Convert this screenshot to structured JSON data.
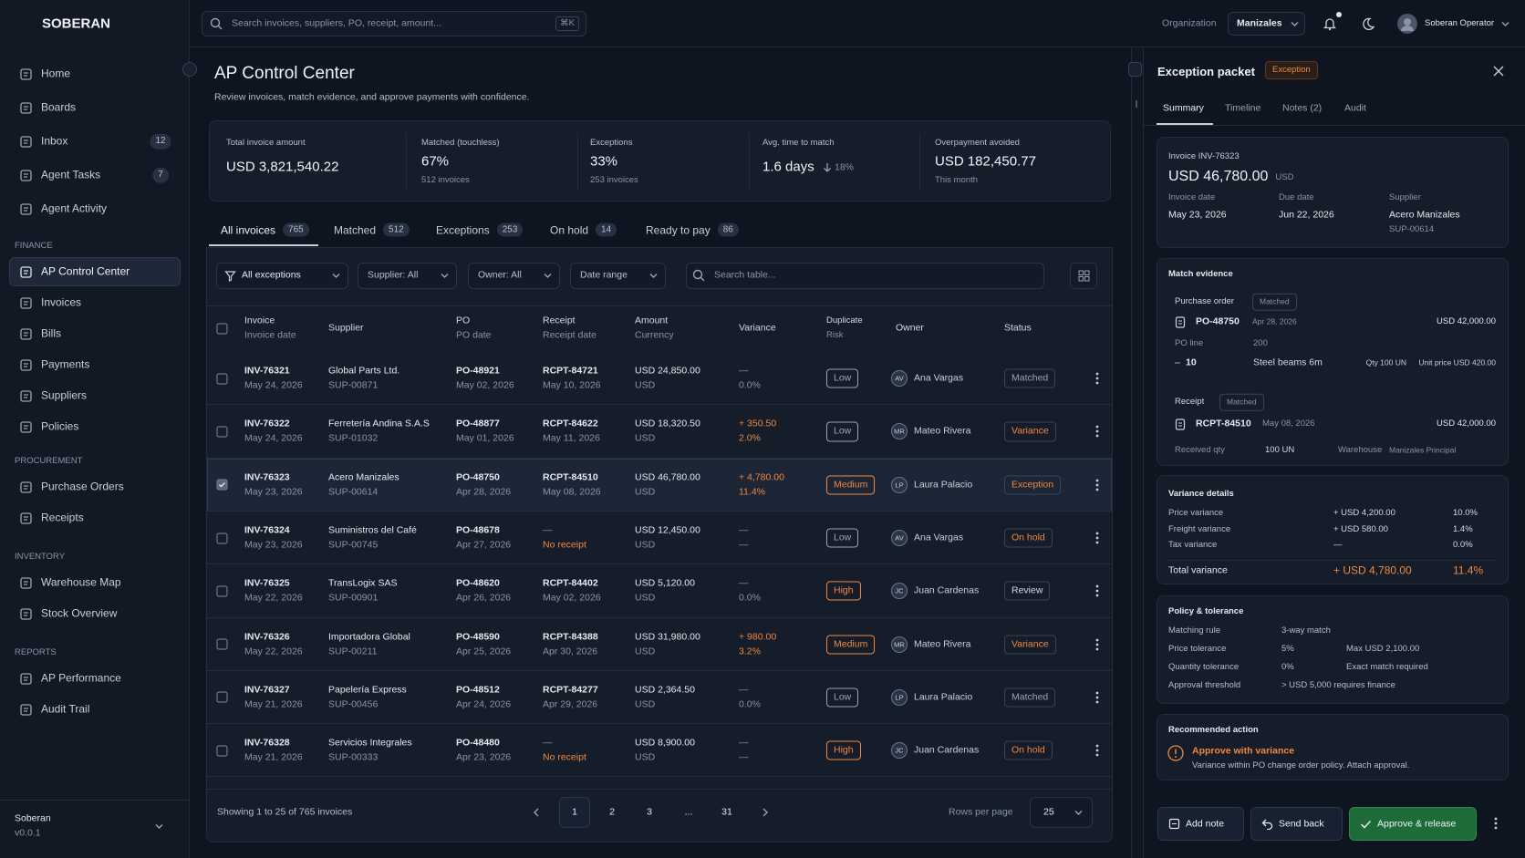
{
  "sidebar": {
    "brand": "SOBERAN",
    "nav": [
      {
        "label": "Home"
      },
      {
        "label": "Boards"
      },
      {
        "label": "Inbox",
        "badge": 12
      },
      {
        "label": "Agent Tasks",
        "badge": 7
      },
      {
        "label": "Agent Activity"
      }
    ],
    "sections": [
      {
        "title": "FINANCE",
        "items": [
          {
            "label": "AP Control Center",
            "active": true
          },
          {
            "label": "Invoices"
          },
          {
            "label": "Bills"
          },
          {
            "label": "Payments"
          },
          {
            "label": "Suppliers"
          },
          {
            "label": "Policies"
          }
        ]
      },
      {
        "title": "PROCUREMENT",
        "items": [
          {
            "label": "Purchase Orders"
          },
          {
            "label": "Receipts"
          }
        ]
      },
      {
        "title": "INVENTORY",
        "items": [
          {
            "label": "Warehouse Map"
          },
          {
            "label": "Stock Overview"
          }
        ]
      },
      {
        "title": "REPORTS",
        "items": [
          {
            "label": "AP Performance"
          },
          {
            "label": "Audit Trail"
          }
        ]
      }
    ],
    "footer": {
      "name": "Soberan",
      "version": "v0.0.1"
    }
  },
  "topbar": {
    "search_placeholder": "Search invoices, suppliers, PO, receipt, amount...",
    "shortcut": "⌘K",
    "org_label": "Organization",
    "org": "Manizales",
    "user": "Soberan Operator"
  },
  "page": {
    "title": "AP Control Center",
    "subtitle": "Review invoices, match evidence, and approve payments with confidence."
  },
  "kpis": [
    {
      "label": "Total invoice amount",
      "value": "USD 3,821,540.22"
    },
    {
      "label": "Matched (touchless)",
      "value": "67%",
      "sub": "512 invoices"
    },
    {
      "label": "Exceptions",
      "value": "33%",
      "sub": "253 invoices"
    },
    {
      "label": "Avg. time to match",
      "value": "1.6 days",
      "delta": "18%"
    },
    {
      "label": "Overpayment avoided",
      "value": "USD 182,450.77",
      "sub": "This month"
    }
  ],
  "tabs": [
    {
      "label": "All invoices",
      "count": 765,
      "active": true
    },
    {
      "label": "Matched",
      "count": 512
    },
    {
      "label": "Exceptions",
      "count": 253
    },
    {
      "label": "On hold",
      "count": 14
    },
    {
      "label": "Ready to pay",
      "count": 86
    }
  ],
  "filters": [
    "All exceptions",
    "Supplier: All",
    "Owner: All",
    "Date range"
  ],
  "table_search": "Search table...",
  "table": {
    "columns": [
      {
        "label": "Invoice",
        "sub": "Invoice date"
      },
      {
        "label": "Supplier"
      },
      {
        "label": "PO",
        "sub": "PO date"
      },
      {
        "label": "Receipt",
        "sub": "Receipt date"
      },
      {
        "label": "Amount",
        "sub": "Currency"
      },
      {
        "label": "Variance"
      },
      {
        "label": "Duplicate",
        "sub": "Risk"
      },
      {
        "label": "Owner"
      },
      {
        "label": "Status"
      }
    ],
    "rows": [
      {
        "invoice": "INV-76321",
        "date": "May 24, 2026",
        "supplier": "Global Parts Ltd.",
        "supplier_id": "SUP-00871",
        "po": "PO-48921",
        "po_date": "May 02, 2026",
        "receipt": "RCPT-84721",
        "receipt_date": "May 10, 2026",
        "amount": "USD 24,850.00",
        "currency": "USD",
        "variance": "—",
        "variance_pct": "0.0%",
        "risk": "Low",
        "risk_color": "#9aa3b2",
        "initials": "AV",
        "owner": "Ana Vargas",
        "status": "Matched",
        "status_color": "#9aa3b2"
      },
      {
        "invoice": "INV-76322",
        "date": "May 24, 2026",
        "supplier": "Ferretería Andina S.A.S",
        "supplier_id": "SUP-01032",
        "po": "PO-48877",
        "po_date": "May 01, 2026",
        "receipt": "RCPT-84622",
        "receipt_date": "May 11, 2026",
        "amount": "USD 18,320.50",
        "currency": "USD",
        "variance": "+ 350.50",
        "variance_pct": "2.0%",
        "variance_color": "#f0883e",
        "risk": "Low",
        "risk_color": "#9aa3b2",
        "initials": "MR",
        "owner": "Mateo Rivera",
        "status": "Variance",
        "status_color": "#f0883e"
      },
      {
        "invoice": "INV-76323",
        "date": "May 23, 2026",
        "supplier": "Acero Manizales",
        "supplier_id": "SUP-00614",
        "po": "PO-48750",
        "po_date": "Apr 28, 2026",
        "receipt": "RCPT-84510",
        "receipt_date": "May 08, 2026",
        "amount": "USD 46,780.00",
        "currency": "USD",
        "variance": "+ 4,780.00",
        "variance_pct": "11.4%",
        "variance_color": "#f0883e",
        "risk": "Medium",
        "risk_color": "#f0883e",
        "initials": "LP",
        "owner": "Laura Palacio",
        "status": "Exception",
        "status_color": "#f0883e",
        "selected": true
      },
      {
        "invoice": "INV-76324",
        "date": "May 23, 2026",
        "supplier": "Suministros del Café",
        "supplier_id": "SUP-00745",
        "po": "PO-48678",
        "po_date": "Apr 27, 2026",
        "receipt": "—",
        "receipt_date": "No receipt",
        "receipt_missing": true,
        "amount": "USD 12,450.00",
        "currency": "USD",
        "variance": "—",
        "variance_pct": "—",
        "risk": "Low",
        "risk_color": "#9aa3b2",
        "initials": "AV",
        "owner": "Ana Vargas",
        "status": "On hold",
        "status_color": "#f0883e"
      },
      {
        "invoice": "INV-76325",
        "date": "May 22, 2026",
        "supplier": "TransLogix SAS",
        "supplier_id": "SUP-00901",
        "po": "PO-48620",
        "po_date": "Apr 26, 2026",
        "receipt": "RCPT-84402",
        "receipt_date": "May 02, 2026",
        "amount": "USD 5,120.00",
        "currency": "USD",
        "variance": "—",
        "variance_pct": "0.0%",
        "risk": "High",
        "risk_color": "#f0883e",
        "initials": "JC",
        "owner": "Juan Cardenas",
        "status": "Review",
        "status_color": "#d5dae3"
      },
      {
        "invoice": "INV-76326",
        "date": "May 22, 2026",
        "supplier": "Importadora Global",
        "supplier_id": "SUP-00211",
        "po": "PO-48590",
        "po_date": "Apr 25, 2026",
        "receipt": "RCPT-84388",
        "receipt_date": "Apr 30, 2026",
        "amount": "USD 31,980.00",
        "currency": "USD",
        "variance": "+ 980.00",
        "variance_pct": "3.2%",
        "variance_color": "#f0883e",
        "risk": "Medium",
        "risk_color": "#f0883e",
        "initials": "MR",
        "owner": "Mateo Rivera",
        "status": "Variance",
        "status_color": "#f0883e"
      },
      {
        "invoice": "INV-76327",
        "date": "May 21, 2026",
        "supplier": "Papelería Express",
        "supplier_id": "SUP-00456",
        "po": "PO-48512",
        "po_date": "Apr 24, 2026",
        "receipt": "RCPT-84277",
        "receipt_date": "Apr 29, 2026",
        "amount": "USD 2,364.50",
        "currency": "USD",
        "variance": "—",
        "variance_pct": "0.0%",
        "risk": "Low",
        "risk_color": "#9aa3b2",
        "initials": "LP",
        "owner": "Laura Palacio",
        "status": "Matched",
        "status_color": "#9aa3b2"
      },
      {
        "invoice": "INV-76328",
        "date": "May 21, 2026",
        "supplier": "Servicios Integrales",
        "supplier_id": "SUP-00333",
        "po": "PO-48480",
        "po_date": "Apr 23, 2026",
        "receipt": "—",
        "receipt_date": "No receipt",
        "receipt_missing": true,
        "amount": "USD 8,900.00",
        "currency": "USD",
        "variance": "—",
        "variance_pct": "—",
        "risk": "High",
        "risk_color": "#f0883e",
        "initials": "JC",
        "owner": "Juan Cardenas",
        "status": "On hold",
        "status_color": "#f0883e"
      }
    ]
  },
  "pagination": {
    "summary": "Showing 1 to 25 of 765 invoices",
    "pages": [
      {
        "label": 1,
        "active": true
      },
      {
        "label": 2
      },
      {
        "label": 3
      },
      {
        "label": "..."
      },
      {
        "label": 31
      }
    ],
    "rows_label": "Rows per page",
    "rows_value": 25
  },
  "panel": {
    "title": "Exception packet",
    "badge": "Exception",
    "tabs": [
      {
        "label": "Summary",
        "active": true
      },
      {
        "label": "Timeline"
      },
      {
        "label": "Notes (2)"
      },
      {
        "label": "Audit"
      }
    ],
    "invoice": {
      "label": "Invoice INV-76323",
      "amount": "USD 46,780.00",
      "currency": "USD",
      "fields": [
        {
          "label": "Invoice date",
          "value": "May 23, 2026"
        },
        {
          "label": "Due date",
          "value": "Jun 22, 2026"
        },
        {
          "label": "Supplier",
          "value": "Acero Manizales",
          "sub": "SUP-00614"
        }
      ]
    },
    "match": {
      "title": "Match evidence",
      "po": {
        "label": "Purchase order",
        "status": "Matched",
        "id": "PO-48750",
        "date": "Apr 28, 2026",
        "amount": "USD 42,000.00",
        "line_label": "PO line",
        "line_header": 200,
        "line_no": 10,
        "item": "Steel beams 6m",
        "qty": "Qty 100 UN",
        "unit_price": "Unit price USD 420.00"
      },
      "receipt": {
        "label": "Receipt",
        "status": "Matched",
        "id": "RCPT-84510",
        "date": "May 08, 2026",
        "amount": "USD 42,000.00",
        "qty_label": "Received qty",
        "qty": "100 UN",
        "warehouse_label": "Warehouse",
        "warehouse": "Manizales Principal"
      }
    },
    "variance": {
      "title": "Variance details",
      "rows": [
        {
          "label": "Price variance",
          "amount": "+ USD 4,200.00",
          "pct": "10.0%"
        },
        {
          "label": "Freight variance",
          "amount": "+ USD 580.00",
          "pct": "1.4%"
        },
        {
          "label": "Tax variance",
          "amount": "—",
          "pct": "0.0%"
        }
      ],
      "total": {
        "label": "Total variance",
        "amount": "+ USD 4,780.00",
        "pct": "11.4%"
      }
    },
    "policy": {
      "title": "Policy & tolerance",
      "rows": [
        {
          "label": "Matching rule",
          "value": "3-way match"
        },
        {
          "label": "Price tolerance",
          "value": "5%",
          "note": "Max USD 2,100.00"
        },
        {
          "label": "Quantity tolerance",
          "value": "0%",
          "note": "Exact match required"
        },
        {
          "label": "Approval threshold",
          "value": "> USD 5,000 requires finance"
        }
      ]
    },
    "recommendation": {
      "title": "Recommended action",
      "action": "Approve with variance",
      "detail": "Variance within PO change order policy. Attach approval."
    },
    "actions": [
      {
        "label": "Add note"
      },
      {
        "label": "Send back"
      },
      {
        "label": "Approve & release",
        "primary": true
      }
    ]
  }
}
